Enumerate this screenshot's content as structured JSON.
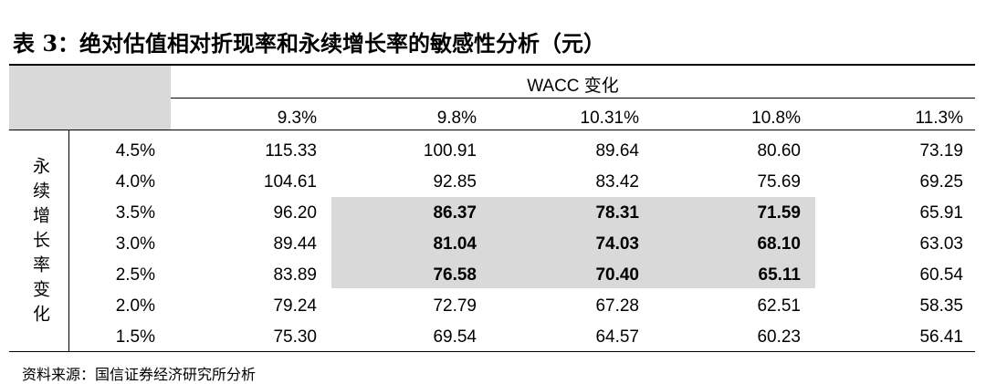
{
  "title": "表 3：绝对估值相对折现率和永续增长率的敏感性分析（元）",
  "table": {
    "column_group": "WACC 变化",
    "row_group": "永续增长率变化",
    "columns": [
      "9.3%",
      "9.8%",
      "10.31%",
      "10.8%",
      "11.3%"
    ],
    "rows": [
      {
        "label": "4.5%",
        "values": [
          "115.33",
          "100.91",
          "89.64",
          "80.60",
          "73.19"
        ]
      },
      {
        "label": "4.0%",
        "values": [
          "104.61",
          "92.85",
          "83.42",
          "75.69",
          "69.25"
        ]
      },
      {
        "label": "3.5%",
        "values": [
          "96.20",
          "86.37",
          "78.31",
          "71.59",
          "65.91"
        ]
      },
      {
        "label": "3.0%",
        "values": [
          "89.44",
          "81.04",
          "74.03",
          "68.10",
          "63.03"
        ]
      },
      {
        "label": "2.5%",
        "values": [
          "83.89",
          "76.58",
          "70.40",
          "65.11",
          "60.54"
        ]
      },
      {
        "label": "2.0%",
        "values": [
          "79.24",
          "72.79",
          "67.28",
          "62.51",
          "58.35"
        ]
      },
      {
        "label": "1.5%",
        "values": [
          "75.30",
          "69.54",
          "64.57",
          "60.23",
          "56.41"
        ]
      }
    ]
  },
  "source": "资料来源：国信证券经济研究所分析"
}
